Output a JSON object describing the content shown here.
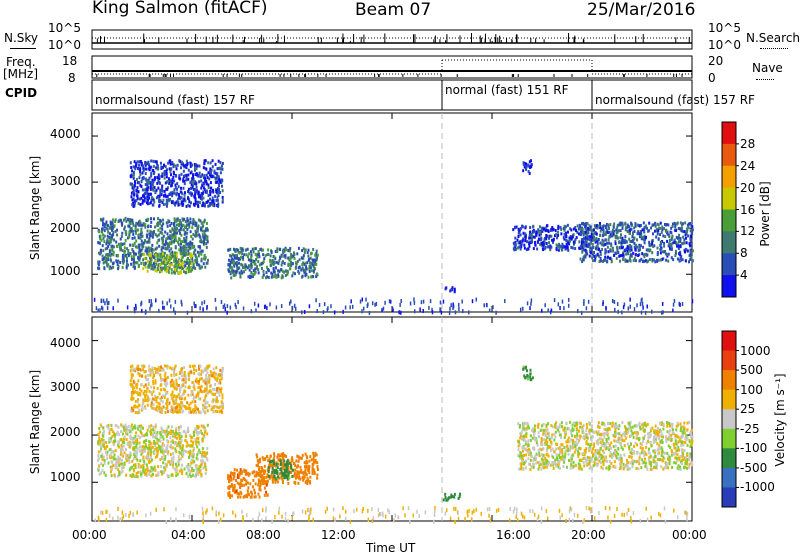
{
  "header": {
    "station": "King Salmon (fitACF)",
    "beam": "Beam 07",
    "date": "25/Mar/2016"
  },
  "strips": {
    "nsky_label": "N.Sky",
    "nsky_ticks": [
      "10^5",
      "10^0"
    ],
    "nsearch_label": "N.Search",
    "nsearch_ticks": [
      "10^5",
      "10^0"
    ],
    "freq_label_1": "Freq.",
    "freq_label_2": "[MHz]",
    "freq_ticks": [
      "18",
      "8"
    ],
    "nave_label": "Nave",
    "nave_ticks": [
      "20",
      "0"
    ],
    "cpid_label": "CPID",
    "cpid_segments": [
      {
        "label": "normalsound (fast) 157 RF",
        "start_hour": 0,
        "end_hour": 14
      },
      {
        "label": "normal (fast) 151 RF",
        "start_hour": 14,
        "end_hour": 20
      },
      {
        "label": "normalsound (fast) 157 RF",
        "start_hour": 20,
        "end_hour": 24
      }
    ]
  },
  "chart_data": [
    {
      "type": "heatmap",
      "parameter": "power",
      "ylabel": "Slant Range [km]",
      "xlabel": "",
      "xlim": [
        0,
        24
      ],
      "ylim": [
        180,
        4500
      ],
      "yticks": [
        "1000",
        "2000",
        "3000",
        "4000"
      ],
      "colorbar_label": "Power [dB]",
      "colorbar_ticks": [
        "4",
        "8",
        "12",
        "16",
        "20",
        "24",
        "28"
      ],
      "colorbar_colors": [
        "#1010ee",
        "#2a4db8",
        "#3f7a70",
        "#4a9e38",
        "#c8c800",
        "#f2a000",
        "#e85a10",
        "#e01010"
      ],
      "regions": [
        {
          "t0": 0.2,
          "t1": 4.6,
          "r0": 1150,
          "r1": 2250,
          "level": 0.45
        },
        {
          "t0": 2.0,
          "t1": 4.0,
          "r0": 1050,
          "r1": 1500,
          "level": 0.75
        },
        {
          "t0": 1.5,
          "t1": 5.2,
          "r0": 2500,
          "r1": 3500,
          "level": 0.2
        },
        {
          "t0": 5.4,
          "t1": 9.0,
          "r0": 950,
          "r1": 1600,
          "level": 0.45
        },
        {
          "t0": 14.0,
          "t1": 14.5,
          "r0": 650,
          "r1": 780,
          "level": 0.1
        },
        {
          "t0": 16.8,
          "t1": 20.0,
          "r0": 1550,
          "r1": 2100,
          "level": 0.25
        },
        {
          "t0": 19.5,
          "t1": 24.0,
          "r0": 1300,
          "r1": 2150,
          "level": 0.35
        },
        {
          "t0": 17.2,
          "t1": 17.6,
          "r0": 3200,
          "r1": 3500,
          "level": 0.15
        }
      ]
    },
    {
      "type": "heatmap",
      "parameter": "velocity",
      "ylabel": "Slant Range [km]",
      "xlabel": "Time UT",
      "xlim": [
        0,
        24
      ],
      "ylim": [
        180,
        4500
      ],
      "xticks": [
        "00:00",
        "04:00",
        "08:00",
        "12:00",
        "16:00",
        "20:00",
        "00:00"
      ],
      "yticks": [
        "1000",
        "2000",
        "3000",
        "4000"
      ],
      "colorbar_label": "Velocity [m s⁻¹]",
      "colorbar_ticks": [
        "1000",
        "500",
        "100",
        "25",
        "-25",
        "-100",
        "-500",
        "-1000"
      ],
      "colorbar_colors": [
        "#2a3db8",
        "#3a70c0",
        "#2e8a3c",
        "#7fcf30",
        "#c8c8c8",
        "#f0b000",
        "#f08000",
        "#e84010",
        "#e01010"
      ],
      "regions": [
        {
          "t0": 0.2,
          "t1": 4.6,
          "r0": 1150,
          "r1": 2250,
          "value": 0
        },
        {
          "t0": 1.5,
          "t1": 5.2,
          "r0": 2500,
          "r1": 3500,
          "value": -50
        },
        {
          "t0": 5.4,
          "t1": 7.0,
          "r0": 700,
          "r1": 1300,
          "value": -450
        },
        {
          "t0": 6.5,
          "t1": 9.0,
          "r0": 1000,
          "r1": 1650,
          "value": -250
        },
        {
          "t0": 7.0,
          "t1": 8.0,
          "r0": 1100,
          "r1": 1500,
          "value": 150
        },
        {
          "t0": 14.0,
          "t1": 14.7,
          "r0": 650,
          "r1": 780,
          "value": 150
        },
        {
          "t0": 17.0,
          "t1": 24.0,
          "r0": 1300,
          "r1": 2300,
          "value": 0
        },
        {
          "t0": 17.2,
          "t1": 17.6,
          "r0": 3200,
          "r1": 3500,
          "value": 150
        }
      ]
    }
  ]
}
